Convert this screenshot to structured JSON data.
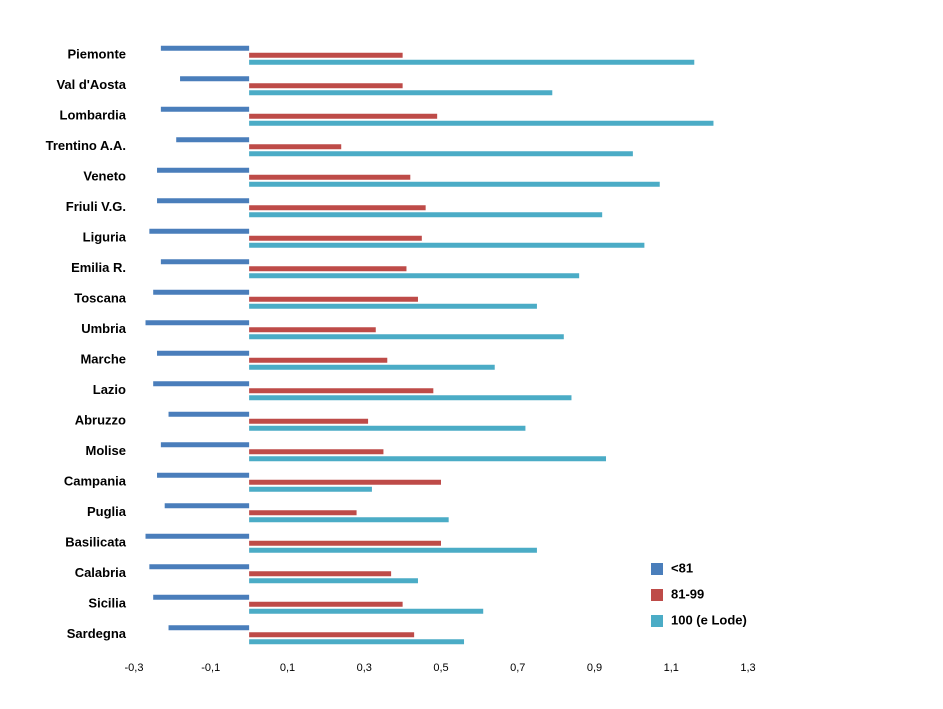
{
  "chart_data": {
    "type": "hbar",
    "categories": [
      "Piemonte",
      "Val d'Aosta",
      "Lombardia",
      "Trentino A.A.",
      "Veneto",
      "Friuli V.G.",
      "Liguria",
      "Emilia R.",
      "Toscana",
      "Umbria",
      "Marche",
      "Lazio",
      "Abruzzo",
      "Molise",
      "Campania",
      "Puglia",
      "Basilicata",
      "Calabria",
      "Sicilia",
      "Sardegna"
    ],
    "series": [
      {
        "name": "<81",
        "color": "#4a7ebb",
        "values": [
          -0.23,
          -0.18,
          -0.23,
          -0.19,
          -0.24,
          -0.24,
          -0.26,
          -0.23,
          -0.25,
          -0.27,
          -0.24,
          -0.25,
          -0.21,
          -0.23,
          -0.24,
          -0.22,
          -0.27,
          -0.26,
          -0.25,
          -0.21
        ]
      },
      {
        "name": "81-99",
        "color": "#be4b48",
        "values": [
          0.4,
          0.4,
          0.49,
          0.24,
          0.42,
          0.46,
          0.45,
          0.41,
          0.44,
          0.33,
          0.36,
          0.48,
          0.31,
          0.35,
          0.5,
          0.28,
          0.5,
          0.37,
          0.4,
          0.43
        ]
      },
      {
        "name": "100 (e Lode)",
        "color": "#4bacc6",
        "values": [
          1.16,
          0.79,
          1.21,
          1.0,
          1.07,
          0.92,
          1.03,
          0.86,
          0.75,
          0.82,
          0.64,
          0.84,
          0.72,
          0.93,
          0.32,
          0.52,
          0.75,
          0.44,
          0.61,
          0.56
        ]
      }
    ],
    "xlim": [
      -0.3,
      1.3
    ],
    "xticks": [
      {
        "value": -0.3,
        "label": "-0,3"
      },
      {
        "value": -0.1,
        "label": "-0,1"
      },
      {
        "value": 0.1,
        "label": "0,1"
      },
      {
        "value": 0.3,
        "label": "0,3"
      },
      {
        "value": 0.5,
        "label": "0,5"
      },
      {
        "value": 0.7,
        "label": "0,7"
      },
      {
        "value": 0.9,
        "label": "0,9"
      },
      {
        "value": 1.1,
        "label": "1,1"
      },
      {
        "value": 1.3,
        "label": "1,3"
      }
    ],
    "grid": false,
    "legend": "right"
  }
}
